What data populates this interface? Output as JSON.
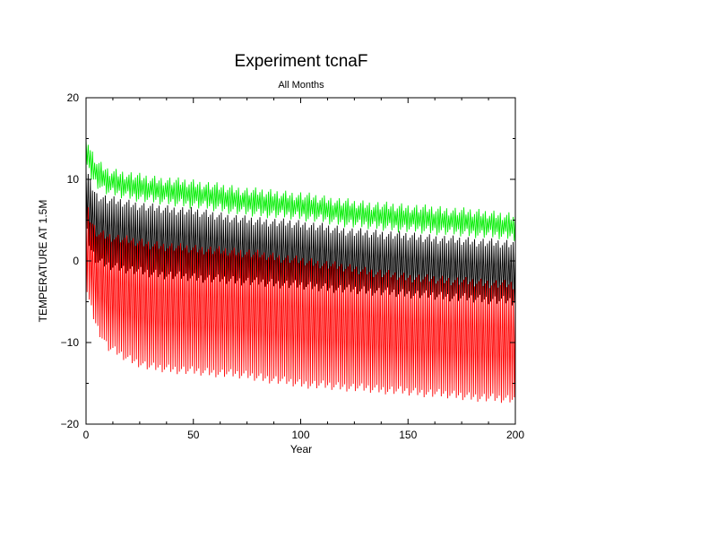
{
  "chart_data": {
    "type": "line",
    "title": "Experiment tcnaF",
    "subtitle": "All Months",
    "xlabel": "Year",
    "ylabel": "TEMPERATURE AT 1.5M",
    "xlim": [
      0,
      200
    ],
    "ylim": [
      -20,
      20
    ],
    "xticks": [
      0,
      50,
      100,
      150,
      200
    ],
    "yticks": [
      -20,
      -10,
      0,
      10,
      20
    ],
    "xtick_labels": [
      "0",
      "50",
      "100",
      "150",
      "200"
    ],
    "ytick_labels": [
      "−20",
      "−10",
      "0",
      "10",
      "20"
    ],
    "grid": false,
    "legend": "none",
    "series": [
      {
        "color": "#00ee00",
        "x": [
          0,
          2,
          5,
          10,
          20,
          30,
          50,
          75,
          100,
          125,
          150,
          175,
          200
        ],
        "upper": [
          15.5,
          13.5,
          12,
          11,
          10.5,
          10,
          9.5,
          8.5,
          8,
          7,
          6.5,
          6,
          5.5
        ],
        "lower": [
          12,
          10.5,
          9.5,
          8.5,
          8,
          7.5,
          7,
          6,
          5.5,
          4.5,
          4,
          3.5,
          3
        ]
      },
      {
        "color": "#000000",
        "x": [
          0,
          2,
          5,
          10,
          20,
          30,
          50,
          75,
          100,
          125,
          150,
          175,
          200
        ],
        "upper": [
          11.5,
          9.5,
          8,
          7.5,
          7,
          6.5,
          6,
          5,
          4.5,
          3.5,
          3,
          2.5,
          2
        ],
        "lower": [
          4,
          1.5,
          0,
          -0.5,
          -1,
          -1.5,
          -2,
          -2.5,
          -3,
          -3.5,
          -4,
          -4.5,
          -5
        ]
      },
      {
        "color": "#ff0000",
        "x": [
          0,
          2,
          5,
          10,
          20,
          30,
          50,
          75,
          100,
          125,
          150,
          175,
          200
        ],
        "upper": [
          7,
          5,
          3.5,
          3,
          2.5,
          2,
          1.5,
          1,
          0,
          -1,
          -2,
          -2.5,
          -3
        ],
        "lower": [
          -3,
          -5.5,
          -8,
          -10.5,
          -12,
          -13,
          -13.5,
          -14,
          -15,
          -15.5,
          -16,
          -16.5,
          -17
        ]
      }
    ]
  }
}
